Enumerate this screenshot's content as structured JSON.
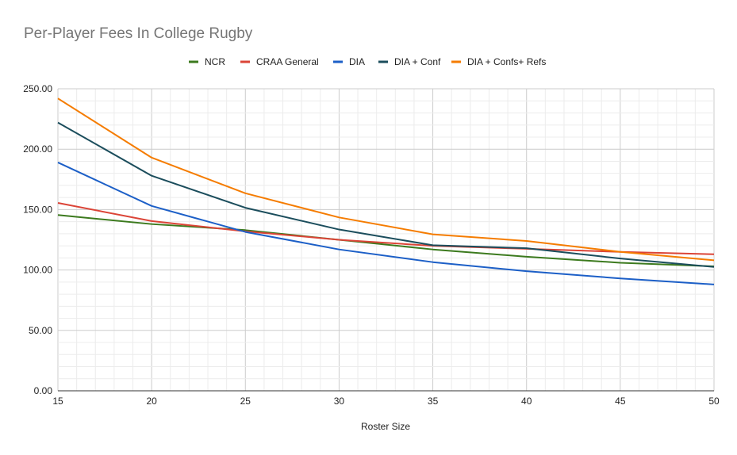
{
  "chart_data": {
    "type": "line",
    "title": "Per-Player Fees In College Rugby",
    "xlabel": "Roster Size",
    "ylabel": "",
    "x": [
      15,
      20,
      25,
      30,
      35,
      40,
      45,
      50
    ],
    "xlim": [
      15,
      50
    ],
    "ylim": [
      0,
      250
    ],
    "x_ticks": [
      "15",
      "20",
      "25",
      "30",
      "35",
      "40",
      "45",
      "50"
    ],
    "y_ticks": [
      "0.00",
      "50.00",
      "100.00",
      "150.00",
      "200.00",
      "250.00"
    ],
    "grid": true,
    "legend_position": "top",
    "series": [
      {
        "name": "NCR",
        "color": "#3c7a1e",
        "values": [
          145.5,
          138,
          133,
          125,
          117,
          111,
          106,
          103
        ]
      },
      {
        "name": "CRAA General",
        "color": "#db4437",
        "values": [
          155.5,
          140.5,
          132,
          125,
          120,
          117.5,
          115,
          113
        ]
      },
      {
        "name": "DIA",
        "color": "#1c5fc7",
        "values": [
          189,
          153,
          131.5,
          117,
          106.5,
          99,
          93,
          88
        ]
      },
      {
        "name": "DIA + Conf",
        "color": "#1b4d5c",
        "values": [
          222,
          178,
          151.5,
          133.5,
          120.5,
          118,
          109.5,
          102.5
        ]
      },
      {
        "name": "DIA + Confs+ Refs",
        "color": "#f57c00",
        "values": [
          242,
          193,
          163.5,
          143.5,
          129.5,
          124,
          115,
          108
        ]
      }
    ]
  }
}
